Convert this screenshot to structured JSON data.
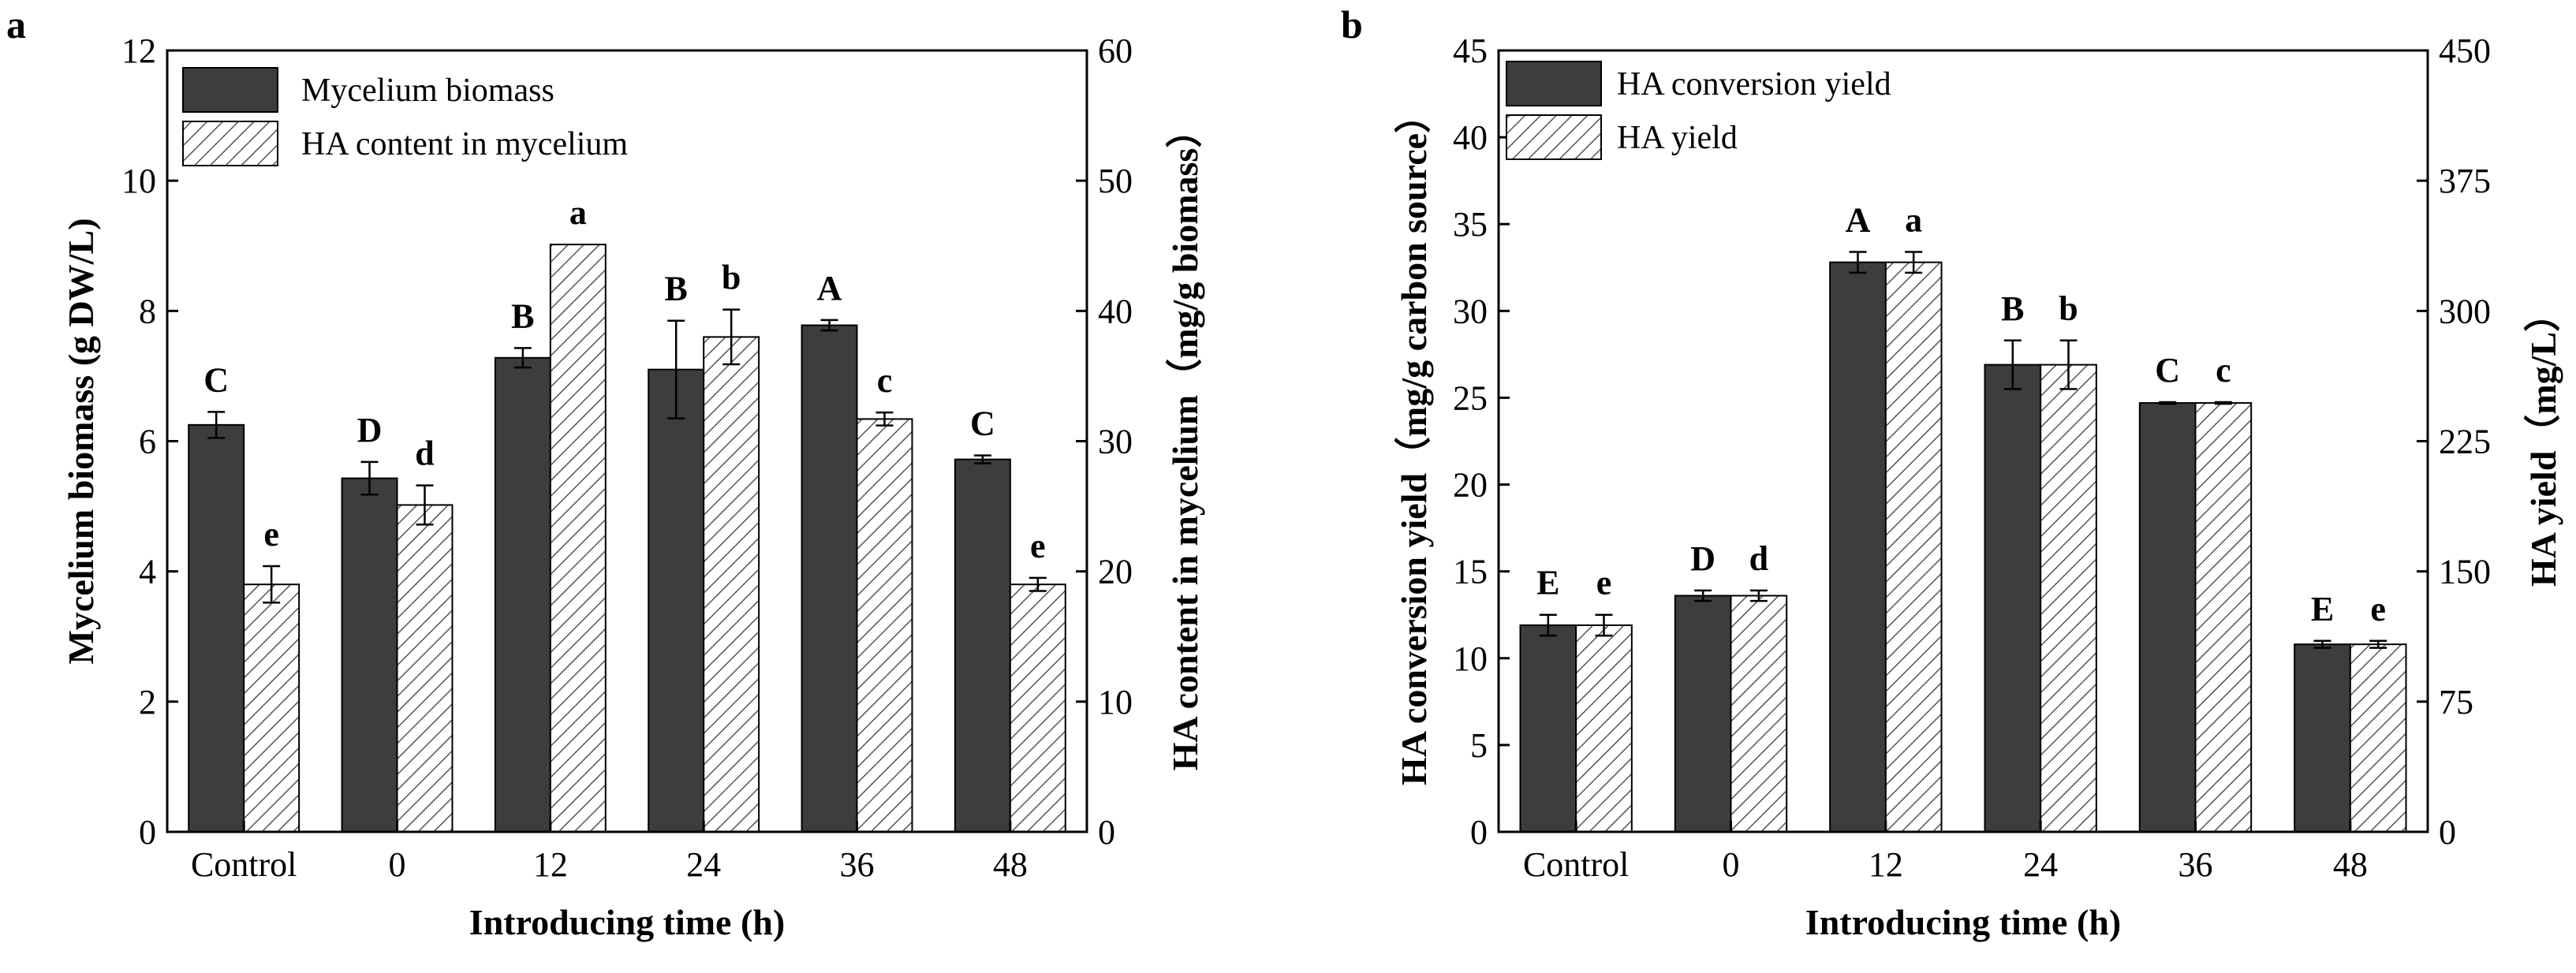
{
  "colors": {
    "dark_bar": "#3d3d3d",
    "hatch_line": "#555555",
    "axis": "#000000"
  },
  "chart_data": [
    {
      "panel": "a",
      "type": "bar",
      "categories": [
        "Control",
        "0",
        "12",
        "24",
        "36",
        "48"
      ],
      "xlabel": "Introducing time (h)",
      "ylabel_left": "Mycelium biomass (g DW/L)",
      "ylabel_right": "HA content in mycelium（mg/g biomass）",
      "ylim_left": [
        0,
        12
      ],
      "yticks_left": [
        "0",
        "2",
        "4",
        "6",
        "8",
        "10",
        "12"
      ],
      "ylim_right": [
        0,
        60
      ],
      "yticks_right": [
        "0",
        "10",
        "20",
        "30",
        "40",
        "50",
        "60"
      ],
      "series": [
        {
          "name": "Mycelium biomass",
          "axis": "left",
          "style": "dark",
          "values": [
            6.25,
            5.43,
            7.28,
            7.1,
            7.78,
            5.72
          ],
          "errors": [
            0.2,
            0.25,
            0.15,
            0.75,
            0.08,
            0.06
          ],
          "letters": [
            "C",
            "D",
            "B",
            "B",
            "A",
            "C"
          ]
        },
        {
          "name": "HA content in mycelium",
          "axis": "right",
          "style": "hatch",
          "values": [
            19.0,
            25.1,
            45.1,
            38.0,
            31.7,
            19.0
          ],
          "errors": [
            1.4,
            1.5,
            0.0,
            2.1,
            0.5,
            0.5
          ],
          "letters": [
            "e",
            "d",
            "a",
            "b",
            "c",
            "e"
          ]
        }
      ]
    },
    {
      "panel": "b",
      "type": "bar",
      "categories": [
        "Control",
        "0",
        "12",
        "24",
        "36",
        "48"
      ],
      "xlabel": "Introducing time (h)",
      "ylabel_left": "HA conversion yield（mg/g carbon source）",
      "ylabel_right": "HA yield（mg/L）",
      "ylim_left": [
        0,
        45
      ],
      "yticks_left": [
        "0",
        "5",
        "10",
        "15",
        "20",
        "25",
        "30",
        "35",
        "40",
        "45"
      ],
      "ylim_right": [
        0,
        450
      ],
      "yticks_right": [
        "0",
        "75",
        "150",
        "225",
        "300",
        "375",
        "450"
      ],
      "series": [
        {
          "name": "HA conversion yield",
          "axis": "left",
          "style": "dark",
          "values": [
            11.9,
            13.6,
            32.8,
            26.9,
            24.7,
            10.8
          ],
          "errors": [
            0.6,
            0.3,
            0.6,
            1.4,
            0.05,
            0.2
          ],
          "letters": [
            "E",
            "D",
            "A",
            "B",
            "C",
            "E"
          ]
        },
        {
          "name": "HA yield",
          "axis": "right",
          "style": "hatch",
          "values": [
            119,
            136,
            328,
            269,
            247,
            108
          ],
          "errors": [
            6,
            3,
            6,
            14,
            0.5,
            2
          ],
          "letters": [
            "e",
            "d",
            "a",
            "b",
            "c",
            "e"
          ]
        }
      ]
    }
  ]
}
